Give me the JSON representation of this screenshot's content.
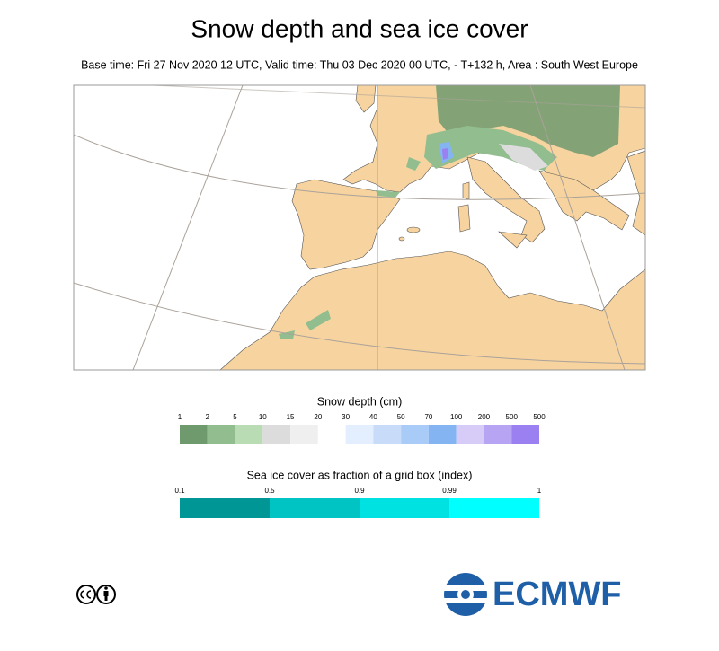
{
  "header": {
    "title": "Snow depth and sea ice cover",
    "subtitle": "Base time: Fri 27 Nov 2020 12 UTC, Valid time: Thu 03 Dec 2020 00 UTC, - T+132 h, Area : South West Europe"
  },
  "legends": {
    "snow": {
      "title": "Snow depth (cm)",
      "labels": [
        "1",
        "2",
        "5",
        "10",
        "15",
        "20",
        "30",
        "40",
        "50",
        "70",
        "100",
        "200",
        "500",
        "500"
      ],
      "colors": [
        "#6e9a6e",
        "#92bd8e",
        "#b9dcb4",
        "#dcdcdc",
        "#efefef",
        "#ffffff",
        "#e3efff",
        "#c8dcfa",
        "#a9cbf8",
        "#84b4f2",
        "#d7ccf8",
        "#b7a4f2",
        "#9a80f0"
      ]
    },
    "ice": {
      "title": "Sea ice cover as fraction of a grid box (index)",
      "labels": [
        "0.1",
        "0.5",
        "0.9",
        "0.99",
        "1"
      ],
      "colors": [
        "#009696",
        "#00c3c3",
        "#00e1e1",
        "#00ffff"
      ]
    }
  },
  "logo": {
    "text": "ECMWF"
  }
}
